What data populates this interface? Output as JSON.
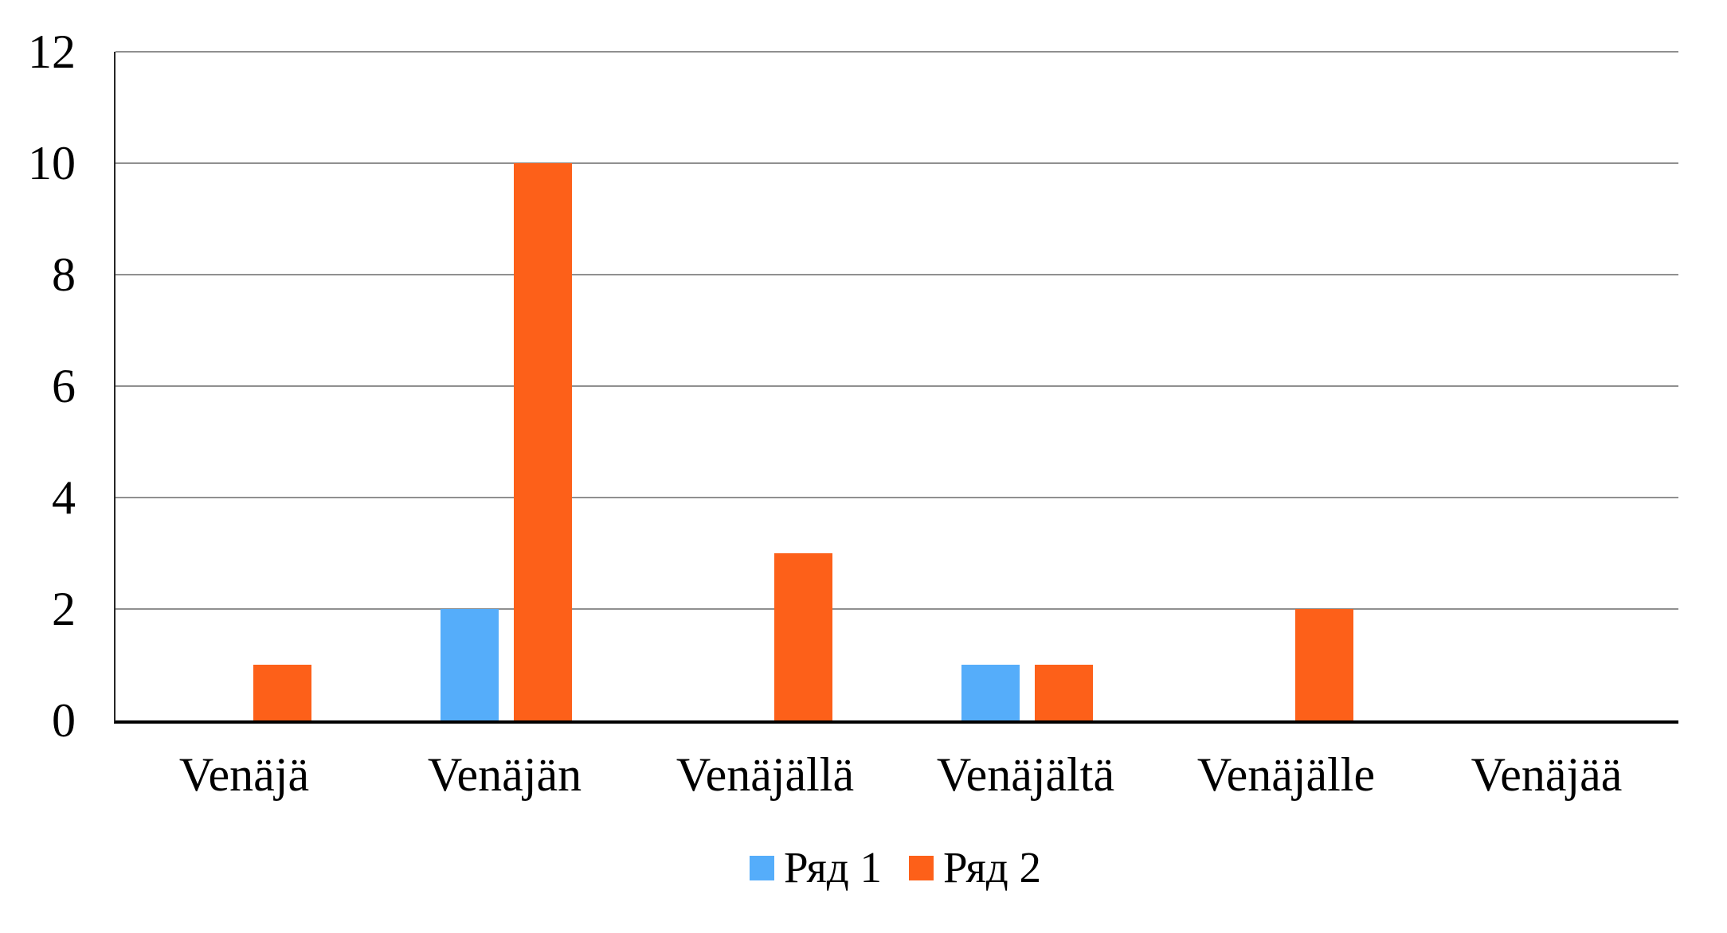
{
  "chart_data": {
    "type": "bar",
    "title": "",
    "categories": [
      "Venäjä",
      "Venäjän",
      "Venäjällä",
      "Venäjältä",
      "Venäjälle",
      "Venäjää"
    ],
    "series": [
      {
        "name": "Ряд 1",
        "color": "#55ADFA",
        "values": [
          0,
          2,
          0,
          1,
          0,
          0
        ]
      },
      {
        "name": "Ряд 2",
        "color": "#FD6019",
        "values": [
          1,
          10,
          3,
          1,
          2,
          0
        ]
      }
    ],
    "xlabel": "",
    "ylabel": "",
    "ylim": [
      0,
      12
    ],
    "yticks": [
      0,
      2,
      4,
      6,
      8,
      10,
      12
    ],
    "grid": true,
    "legend_position": "bottom",
    "colors": {
      "series1": "#55ADFA",
      "series2": "#FD6019",
      "gridline": "#909090",
      "y_axis_line": "#262626",
      "x_axis_line": "#000000",
      "text": "#000000",
      "background": "#ffffff"
    }
  }
}
